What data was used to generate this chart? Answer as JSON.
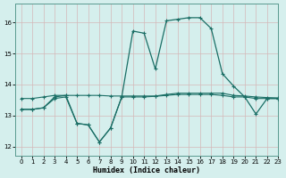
{
  "xlabel": "Humidex (Indice chaleur)",
  "background_color": "#d5efed",
  "grid_color": "#c8dedd",
  "line_color": "#1a6e65",
  "xlim": [
    -0.5,
    23
  ],
  "ylim": [
    11.7,
    16.6
  ],
  "yticks": [
    12,
    13,
    14,
    15,
    16
  ],
  "xticks": [
    0,
    1,
    2,
    3,
    4,
    5,
    6,
    7,
    8,
    9,
    10,
    11,
    12,
    13,
    14,
    15,
    16,
    17,
    18,
    19,
    20,
    21,
    22,
    23
  ],
  "series": {
    "line1": {
      "x": [
        0,
        1,
        2,
        3,
        4,
        5,
        6,
        7,
        8,
        9,
        10,
        11,
        12,
        13,
        14,
        15,
        16,
        17,
        18,
        19,
        20,
        21,
        22,
        23
      ],
      "y": [
        13.2,
        13.2,
        13.25,
        13.55,
        13.6,
        12.75,
        12.7,
        12.15,
        12.6,
        13.6,
        13.6,
        13.6,
        13.62,
        13.65,
        13.68,
        13.68,
        13.68,
        13.68,
        13.65,
        13.6,
        13.6,
        13.55,
        13.55,
        13.55
      ]
    },
    "line2": {
      "x": [
        0,
        1,
        2,
        3,
        4,
        5,
        6,
        7,
        8,
        9,
        10,
        11,
        12,
        13,
        14,
        15,
        16,
        17,
        18,
        19,
        20,
        21,
        22,
        23
      ],
      "y": [
        13.55,
        13.55,
        13.6,
        13.65,
        13.65,
        13.65,
        13.65,
        13.65,
        13.63,
        13.63,
        13.63,
        13.63,
        13.63,
        13.68,
        13.72,
        13.72,
        13.72,
        13.72,
        13.72,
        13.65,
        13.63,
        13.6,
        13.58,
        13.57
      ]
    },
    "line3": {
      "x": [
        0,
        1,
        2,
        3,
        4,
        5,
        6,
        7,
        8,
        9,
        10,
        11,
        12,
        13,
        14,
        15,
        16,
        17,
        18,
        19,
        20,
        21,
        22,
        23
      ],
      "y": [
        13.2,
        13.2,
        13.25,
        13.6,
        13.65,
        12.75,
        12.7,
        12.15,
        12.6,
        13.6,
        15.72,
        15.65,
        14.5,
        16.05,
        16.1,
        16.15,
        16.15,
        15.8,
        14.35,
        13.95,
        13.6,
        13.05,
        13.55,
        13.55
      ]
    }
  }
}
